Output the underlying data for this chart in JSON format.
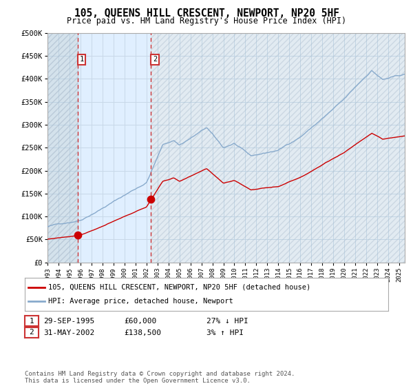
{
  "title": "105, QUEENS HILL CRESCENT, NEWPORT, NP20 5HF",
  "subtitle": "Price paid vs. HM Land Registry's House Price Index (HPI)",
  "legend_line1": "105, QUEENS HILL CRESCENT, NEWPORT, NP20 5HF (detached house)",
  "legend_line2": "HPI: Average price, detached house, Newport",
  "annotation1_label": "1",
  "annotation1_date": "29-SEP-1995",
  "annotation1_price": "£60,000",
  "annotation1_hpi": "27% ↓ HPI",
  "annotation2_label": "2",
  "annotation2_date": "31-MAY-2002",
  "annotation2_price": "£138,500",
  "annotation2_hpi": "3% ↑ HPI",
  "footnote": "Contains HM Land Registry data © Crown copyright and database right 2024.\nThis data is licensed under the Open Government Licence v3.0.",
  "sale1_x": 1995.75,
  "sale1_y": 60000,
  "sale2_x": 2002.42,
  "sale2_y": 138500,
  "vline1_x": 1995.75,
  "vline2_x": 2002.42,
  "shade_start": 1995.75,
  "shade_end": 2002.42,
  "hatch_left_end": 1993.0,
  "hatch_right_start": 2025.0,
  "ylim": [
    0,
    500000
  ],
  "xlim": [
    1993.0,
    2025.5
  ],
  "yticks": [
    0,
    50000,
    100000,
    150000,
    200000,
    250000,
    300000,
    350000,
    400000,
    450000,
    500000
  ],
  "background_color": "#ffffff",
  "plot_bg_color": "#ffffff",
  "grid_color": "#c8d8e8",
  "hatch_color": "#b8cfe0",
  "shade_color": "#ddeeff",
  "red_line_color": "#cc0000",
  "blue_line_color": "#88aacc",
  "vline_color": "#cc3333",
  "dot_color": "#cc0000",
  "border_color": "#aaaaaa",
  "marker_box_color": "#cc3333"
}
